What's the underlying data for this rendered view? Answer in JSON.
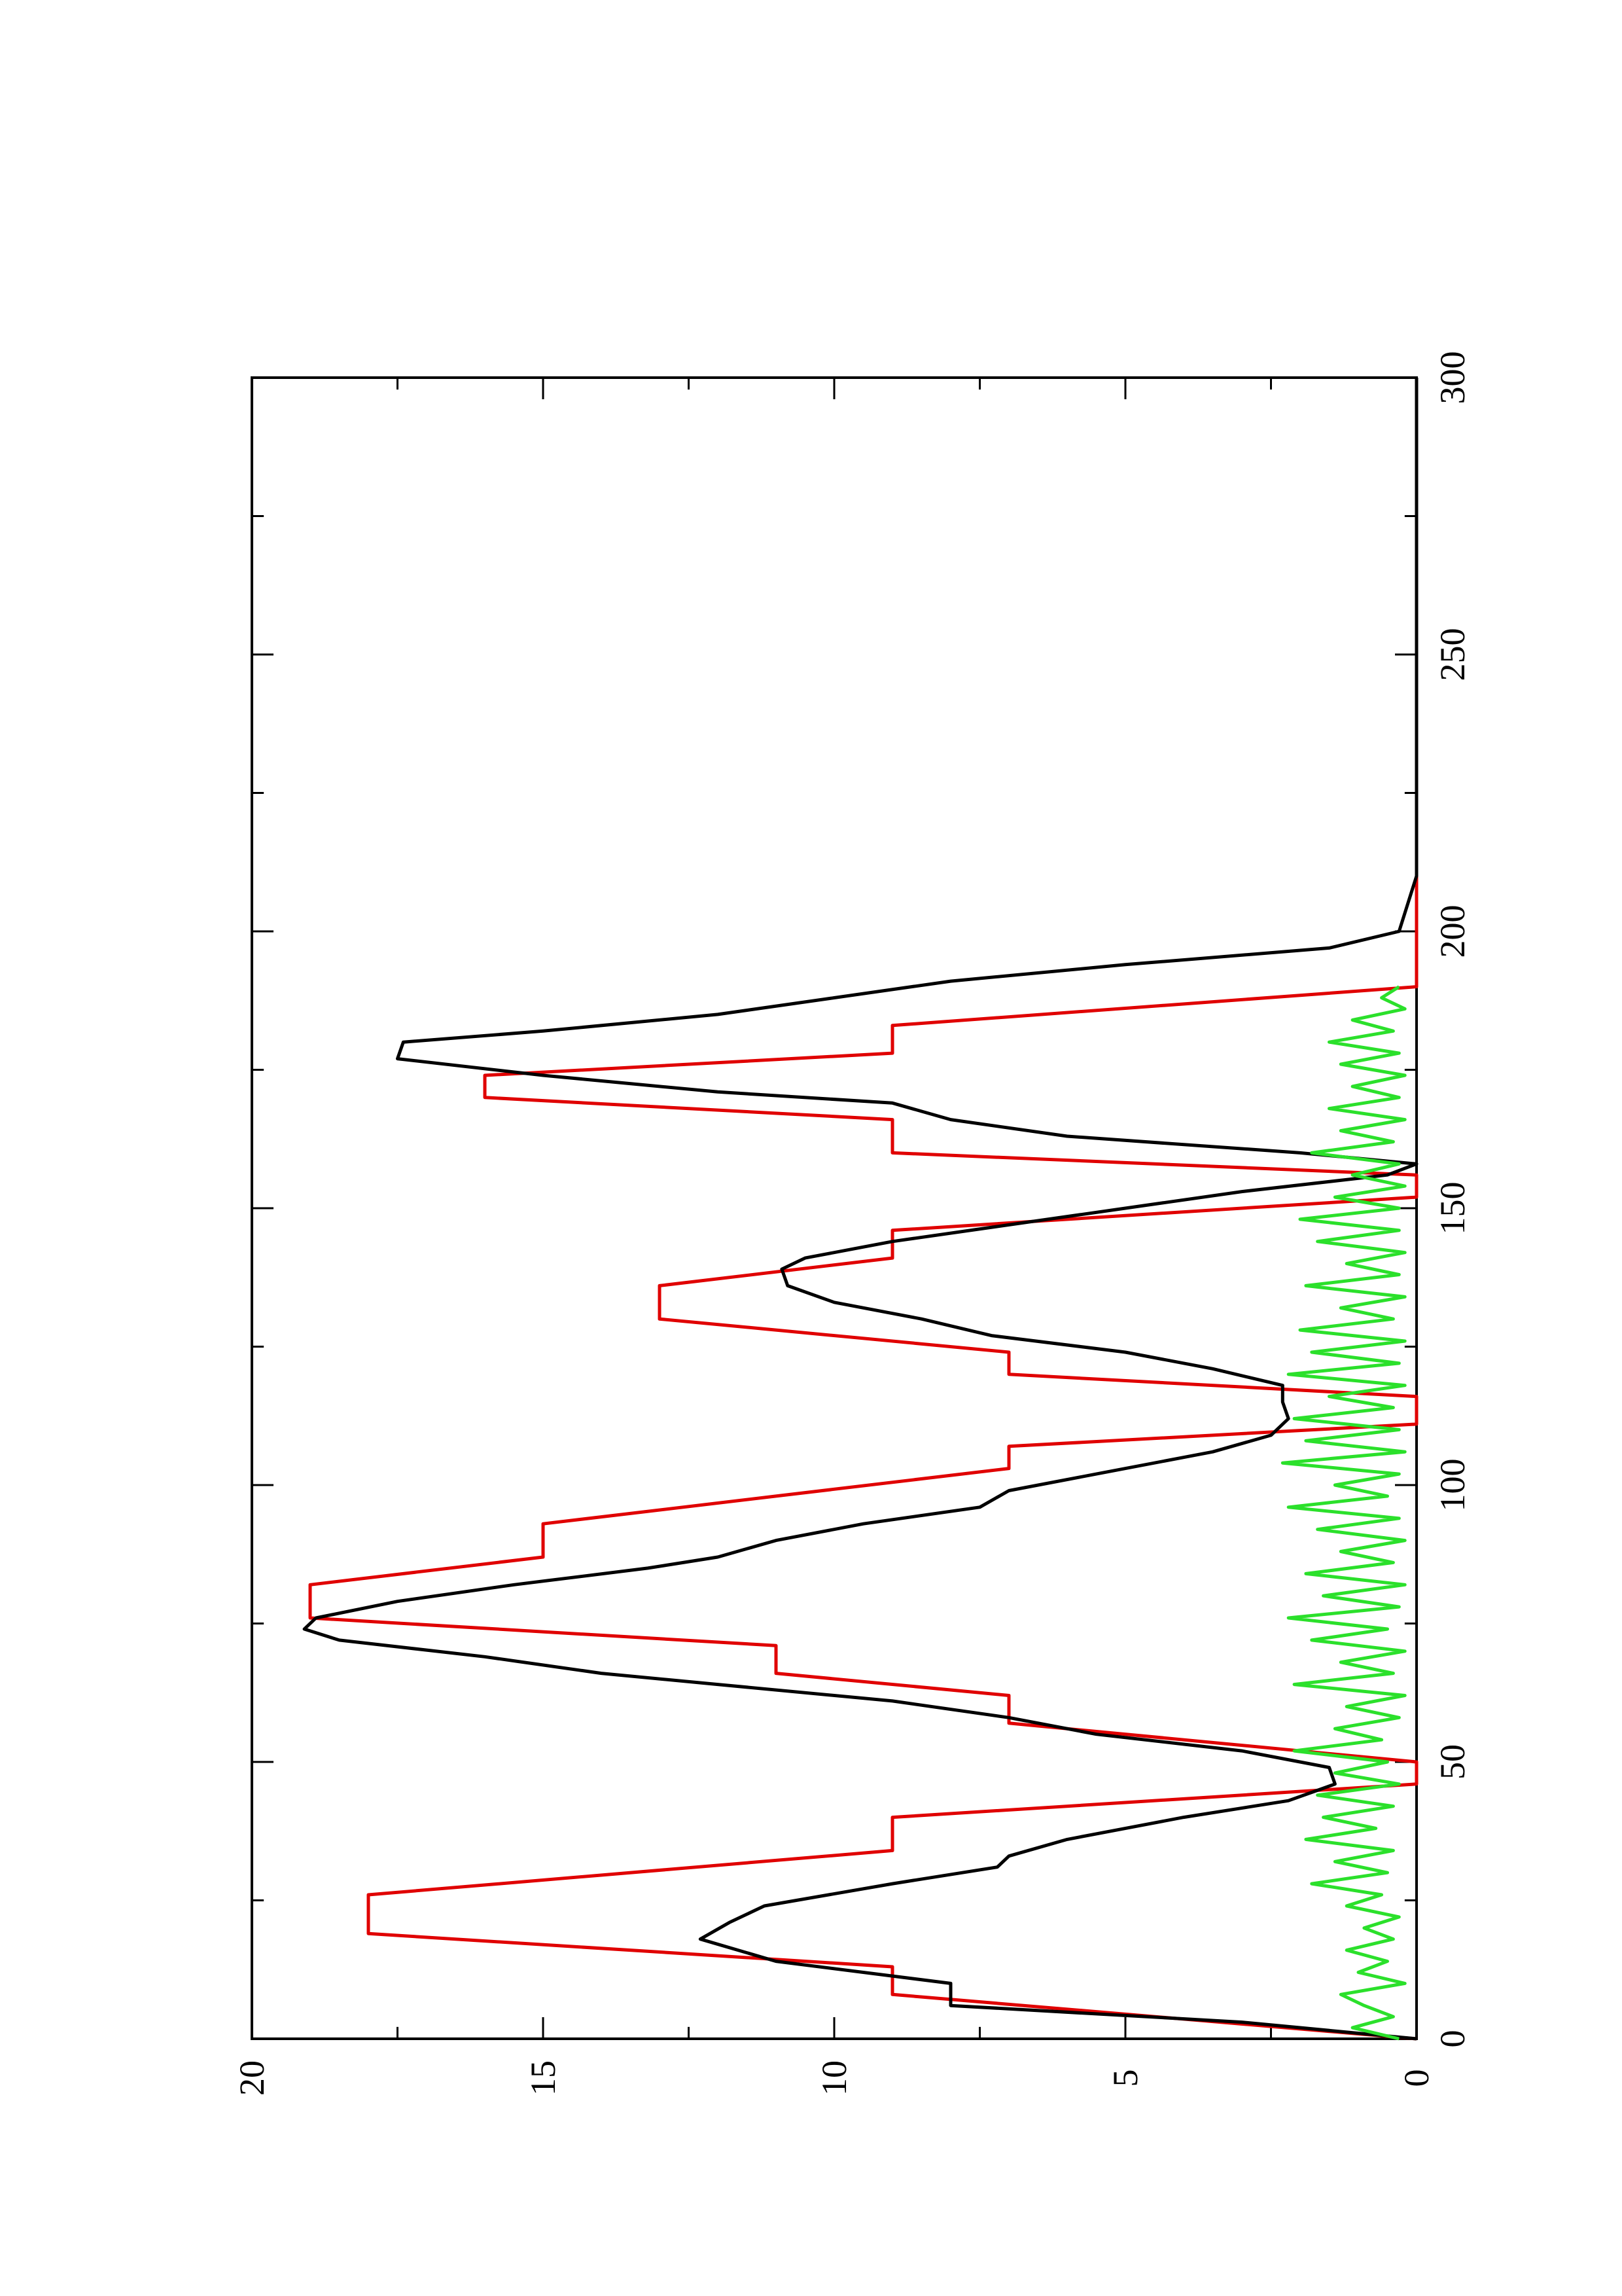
{
  "chart_data": {
    "type": "line",
    "orientation": "rotated 90 degrees counter-clockwise on the page",
    "title": "",
    "xlabel": "",
    "ylabel": "",
    "xlim": [
      0,
      300
    ],
    "ylim": [
      0,
      20
    ],
    "x_ticks": [
      0,
      50,
      100,
      150,
      200,
      250,
      300
    ],
    "x_tick_labels": [
      "0",
      "50",
      "100",
      "150",
      "200",
      "250",
      "300"
    ],
    "y_ticks": [
      0,
      5,
      10,
      15,
      20
    ],
    "y_tick_labels": [
      "0",
      "5",
      "10",
      "15",
      "20"
    ],
    "x_minor_step": 25,
    "grid": false,
    "legend": "none",
    "series": [
      {
        "color": "#e00000",
        "points": [
          [
            0,
            0
          ],
          [
            8,
            9
          ],
          [
            13,
            9
          ],
          [
            19,
            18
          ],
          [
            26,
            18
          ],
          [
            34,
            9
          ],
          [
            40,
            9
          ],
          [
            46,
            0
          ],
          [
            50,
            0
          ],
          [
            57,
            7
          ],
          [
            62,
            7
          ],
          [
            66,
            11
          ],
          [
            71,
            11
          ],
          [
            76,
            19
          ],
          [
            82,
            19
          ],
          [
            87,
            15
          ],
          [
            93,
            15
          ],
          [
            98,
            11
          ],
          [
            103,
            7
          ],
          [
            107,
            7
          ],
          [
            111,
            0
          ],
          [
            116,
            0
          ],
          [
            120,
            7
          ],
          [
            124,
            7
          ],
          [
            130,
            13
          ],
          [
            136,
            13
          ],
          [
            141,
            9
          ],
          [
            146,
            9
          ],
          [
            152,
            0
          ],
          [
            156,
            0
          ],
          [
            160,
            9
          ],
          [
            166,
            9
          ],
          [
            170,
            16
          ],
          [
            174,
            16
          ],
          [
            178,
            9
          ],
          [
            183,
            9
          ],
          [
            190,
            0
          ],
          [
            300,
            0
          ]
        ]
      },
      {
        "color": "#000000",
        "points": [
          [
            0,
            0
          ],
          [
            3,
            3
          ],
          [
            6,
            8
          ],
          [
            10,
            8
          ],
          [
            14,
            11
          ],
          [
            18,
            12.3
          ],
          [
            21,
            11.8
          ],
          [
            24,
            11.2
          ],
          [
            28,
            9
          ],
          [
            31,
            7.2
          ],
          [
            33,
            7
          ],
          [
            36,
            6
          ],
          [
            40,
            4
          ],
          [
            43,
            2.2
          ],
          [
            46,
            1.4
          ],
          [
            49,
            1.5
          ],
          [
            52,
            3
          ],
          [
            55,
            5.5
          ],
          [
            58,
            7
          ],
          [
            61,
            9
          ],
          [
            64,
            12
          ],
          [
            66,
            14
          ],
          [
            69,
            16
          ],
          [
            72,
            18.5
          ],
          [
            74,
            19.1
          ],
          [
            76,
            18.9
          ],
          [
            79,
            17.5
          ],
          [
            82,
            15.5
          ],
          [
            85,
            13.2
          ],
          [
            87,
            12
          ],
          [
            90,
            11
          ],
          [
            93,
            9.5
          ],
          [
            96,
            7.5
          ],
          [
            99,
            7
          ],
          [
            102,
            5.5
          ],
          [
            106,
            3.5
          ],
          [
            109,
            2.5
          ],
          [
            112,
            2.2
          ],
          [
            115,
            2.3
          ],
          [
            118,
            2.3
          ],
          [
            121,
            3.5
          ],
          [
            124,
            5
          ],
          [
            127,
            7.3
          ],
          [
            130,
            8.5
          ],
          [
            133,
            10
          ],
          [
            136,
            10.8
          ],
          [
            139,
            10.9
          ],
          [
            141,
            10.5
          ],
          [
            144,
            9
          ],
          [
            147,
            7
          ],
          [
            150,
            5
          ],
          [
            153,
            3
          ],
          [
            156,
            0.5
          ],
          [
            158,
            0
          ],
          [
            160,
            2
          ],
          [
            163,
            6
          ],
          [
            166,
            8
          ],
          [
            169,
            9
          ],
          [
            171,
            12
          ],
          [
            174,
            15
          ],
          [
            177,
            17.5
          ],
          [
            180,
            17.4
          ],
          [
            182,
            15
          ],
          [
            185,
            12
          ],
          [
            188,
            10
          ],
          [
            191,
            8
          ],
          [
            194,
            5
          ],
          [
            197,
            1.5
          ],
          [
            200,
            0.3
          ],
          [
            210,
            0
          ],
          [
            300,
            0
          ]
        ]
      },
      {
        "color": "#2be02b",
        "points": [
          [
            0,
            0.3
          ],
          [
            2,
            1.1
          ],
          [
            4,
            0.4
          ],
          [
            6,
            0.9
          ],
          [
            8,
            1.3
          ],
          [
            10,
            0.2
          ],
          [
            12,
            1
          ],
          [
            14,
            0.5
          ],
          [
            16,
            1.2
          ],
          [
            18,
            0.4
          ],
          [
            20,
            0.9
          ],
          [
            22,
            0.3
          ],
          [
            24,
            1.2
          ],
          [
            26,
            0.6
          ],
          [
            28,
            1.8
          ],
          [
            30,
            0.5
          ],
          [
            32,
            1.4
          ],
          [
            34,
            0.4
          ],
          [
            36,
            1.9
          ],
          [
            38,
            0.7
          ],
          [
            40,
            1.6
          ],
          [
            42,
            0.4
          ],
          [
            44,
            1.7
          ],
          [
            46,
            0.3
          ],
          [
            48,
            1.4
          ],
          [
            50,
            0.5
          ],
          [
            52,
            2.1
          ],
          [
            54,
            0.6
          ],
          [
            56,
            1.4
          ],
          [
            58,
            0.3
          ],
          [
            60,
            1.2
          ],
          [
            62,
            0.2
          ],
          [
            64,
            2.1
          ],
          [
            66,
            0.4
          ],
          [
            68,
            1.3
          ],
          [
            70,
            0.2
          ],
          [
            72,
            1.8
          ],
          [
            74,
            0.5
          ],
          [
            76,
            2.2
          ],
          [
            78,
            0.3
          ],
          [
            80,
            1.6
          ],
          [
            82,
            0.2
          ],
          [
            84,
            1.9
          ],
          [
            86,
            0.4
          ],
          [
            88,
            1.3
          ],
          [
            90,
            0.2
          ],
          [
            92,
            1.7
          ],
          [
            94,
            0.3
          ],
          [
            96,
            2.2
          ],
          [
            98,
            0.5
          ],
          [
            100,
            1.4
          ],
          [
            102,
            0.3
          ],
          [
            104,
            2.3
          ],
          [
            106,
            0.2
          ],
          [
            108,
            1.9
          ],
          [
            110,
            0.3
          ],
          [
            112,
            2.1
          ],
          [
            114,
            0.4
          ],
          [
            116,
            1.5
          ],
          [
            118,
            0.2
          ],
          [
            120,
            2.2
          ],
          [
            122,
            0.3
          ],
          [
            124,
            1.8
          ],
          [
            126,
            0.2
          ],
          [
            128,
            2
          ],
          [
            130,
            0.4
          ],
          [
            132,
            1.3
          ],
          [
            134,
            0.2
          ],
          [
            136,
            1.9
          ],
          [
            138,
            0.3
          ],
          [
            140,
            1.2
          ],
          [
            142,
            0.2
          ],
          [
            144,
            1.7
          ],
          [
            146,
            0.3
          ],
          [
            148,
            2
          ],
          [
            150,
            0.3
          ],
          [
            152,
            1.4
          ],
          [
            154,
            0.2
          ],
          [
            156,
            1.1
          ],
          [
            158,
            0.3
          ],
          [
            160,
            1.8
          ],
          [
            162,
            0.4
          ],
          [
            164,
            1.3
          ],
          [
            166,
            0.2
          ],
          [
            168,
            1.5
          ],
          [
            170,
            0.3
          ],
          [
            172,
            1.1
          ],
          [
            174,
            0.2
          ],
          [
            176,
            1.3
          ],
          [
            178,
            0.3
          ],
          [
            180,
            1.5
          ],
          [
            182,
            0.4
          ],
          [
            184,
            1.1
          ],
          [
            186,
            0.2
          ],
          [
            188,
            0.6
          ],
          [
            190,
            0.3
          ]
        ]
      }
    ]
  }
}
